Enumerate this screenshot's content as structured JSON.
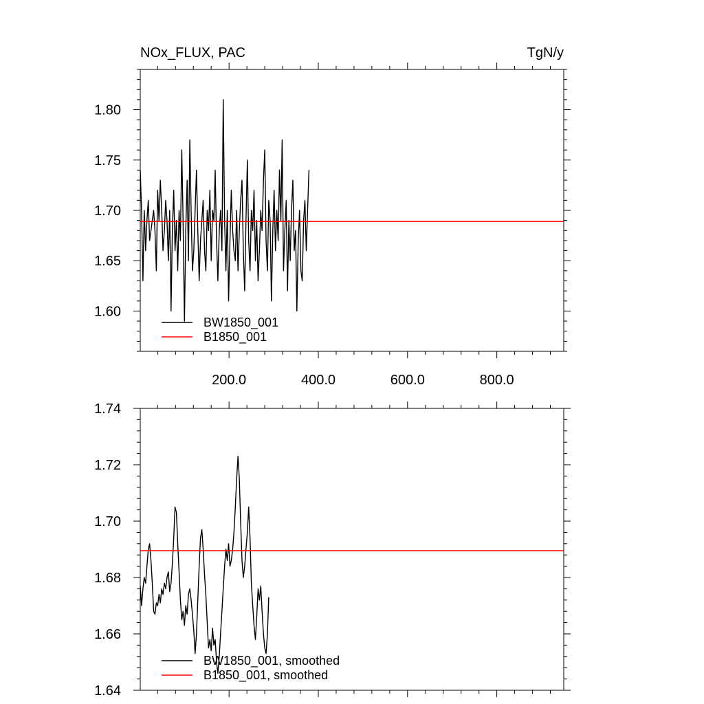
{
  "chart_data": [
    {
      "type": "line",
      "title_left": "NOx_FLUX, PAC",
      "title_right": "TgN/y",
      "xlim": [
        1,
        950
      ],
      "ylim": [
        1.56,
        1.84
      ],
      "x_ticks": [
        200,
        400,
        600,
        800
      ],
      "x_tick_labels": [
        "200.0",
        "400.0",
        "600.0",
        "800.0"
      ],
      "y_ticks": [
        1.6,
        1.65,
        1.7,
        1.75,
        1.8
      ],
      "y_tick_labels": [
        "1.60",
        "1.65",
        "1.70",
        "1.75",
        "1.80"
      ],
      "grid": false,
      "legend_position": "bottom-left",
      "series": [
        {
          "name": "BW1850_001",
          "color": "#000000",
          "x_start": 1,
          "x_step": 3,
          "values": [
            1.74,
            1.7,
            1.63,
            1.7,
            1.66,
            1.69,
            1.71,
            1.67,
            1.68,
            1.69,
            1.7,
            1.68,
            1.64,
            1.72,
            1.69,
            1.73,
            1.7,
            1.66,
            1.68,
            1.71,
            1.69,
            1.65,
            1.7,
            1.6,
            1.68,
            1.72,
            1.66,
            1.69,
            1.64,
            1.7,
            1.67,
            1.76,
            1.69,
            1.59,
            1.68,
            1.73,
            1.65,
            1.77,
            1.7,
            1.64,
            1.66,
            1.7,
            1.74,
            1.68,
            1.63,
            1.67,
            1.69,
            1.71,
            1.66,
            1.64,
            1.7,
            1.68,
            1.72,
            1.65,
            1.7,
            1.69,
            1.74,
            1.67,
            1.63,
            1.68,
            1.7,
            1.66,
            1.81,
            1.69,
            1.64,
            1.7,
            1.61,
            1.67,
            1.72,
            1.68,
            1.66,
            1.65,
            1.7,
            1.64,
            1.68,
            1.71,
            1.73,
            1.66,
            1.62,
            1.69,
            1.75,
            1.67,
            1.64,
            1.7,
            1.68,
            1.72,
            1.65,
            1.69,
            1.63,
            1.66,
            1.7,
            1.68,
            1.73,
            1.76,
            1.67,
            1.64,
            1.71,
            1.69,
            1.61,
            1.68,
            1.72,
            1.66,
            1.7,
            1.67,
            1.74,
            1.69,
            1.77,
            1.64,
            1.68,
            1.71,
            1.62,
            1.69,
            1.65,
            1.7,
            1.73,
            1.66,
            1.68,
            1.6,
            1.67,
            1.7,
            1.64,
            1.63,
            1.69,
            1.71,
            1.66,
            1.7,
            1.74
          ]
        },
        {
          "name": "B1850_001",
          "color": "#ff0000",
          "x": [
            1,
            950
          ],
          "values": [
            1.689,
            1.689
          ]
        }
      ]
    },
    {
      "type": "line",
      "xlim": [
        1,
        950
      ],
      "ylim": [
        1.64,
        1.74
      ],
      "x_ticks": [
        200,
        400,
        600,
        800
      ],
      "y_ticks": [
        1.64,
        1.66,
        1.68,
        1.7,
        1.72,
        1.74
      ],
      "y_tick_labels": [
        "1.64",
        "1.66",
        "1.68",
        "1.70",
        "1.72",
        "1.74"
      ],
      "grid": false,
      "legend_position": "bottom-left",
      "series": [
        {
          "name": "BW1850_001, smoothed",
          "color": "#000000",
          "x_start": 1,
          "x_step": 3,
          "values": [
            1.677,
            1.67,
            1.676,
            1.68,
            1.678,
            1.684,
            1.69,
            1.692,
            1.686,
            1.678,
            1.668,
            1.667,
            1.671,
            1.67,
            1.674,
            1.671,
            1.676,
            1.674,
            1.678,
            1.676,
            1.68,
            1.682,
            1.675,
            1.678,
            1.685,
            1.694,
            1.705,
            1.703,
            1.692,
            1.682,
            1.672,
            1.665,
            1.668,
            1.663,
            1.67,
            1.667,
            1.674,
            1.676,
            1.672,
            1.667,
            1.661,
            1.653,
            1.66,
            1.672,
            1.684,
            1.694,
            1.697,
            1.69,
            1.681,
            1.674,
            1.664,
            1.655,
            1.658,
            1.654,
            1.662,
            1.656,
            1.658,
            1.65,
            1.646,
            1.652,
            1.66,
            1.668,
            1.676,
            1.684,
            1.69,
            1.686,
            1.692,
            1.684,
            1.686,
            1.69,
            1.696,
            1.705,
            1.715,
            1.723,
            1.715,
            1.7,
            1.686,
            1.68,
            1.684,
            1.69,
            1.696,
            1.705,
            1.694,
            1.678,
            1.67,
            1.663,
            1.658,
            1.666,
            1.676,
            1.672,
            1.677,
            1.668,
            1.66,
            1.655,
            1.653,
            1.66,
            1.673
          ]
        },
        {
          "name": "B1850_001, smoothed",
          "color": "#ff0000",
          "x": [
            1,
            950
          ],
          "values": [
            1.6895,
            1.6895
          ]
        }
      ]
    }
  ]
}
